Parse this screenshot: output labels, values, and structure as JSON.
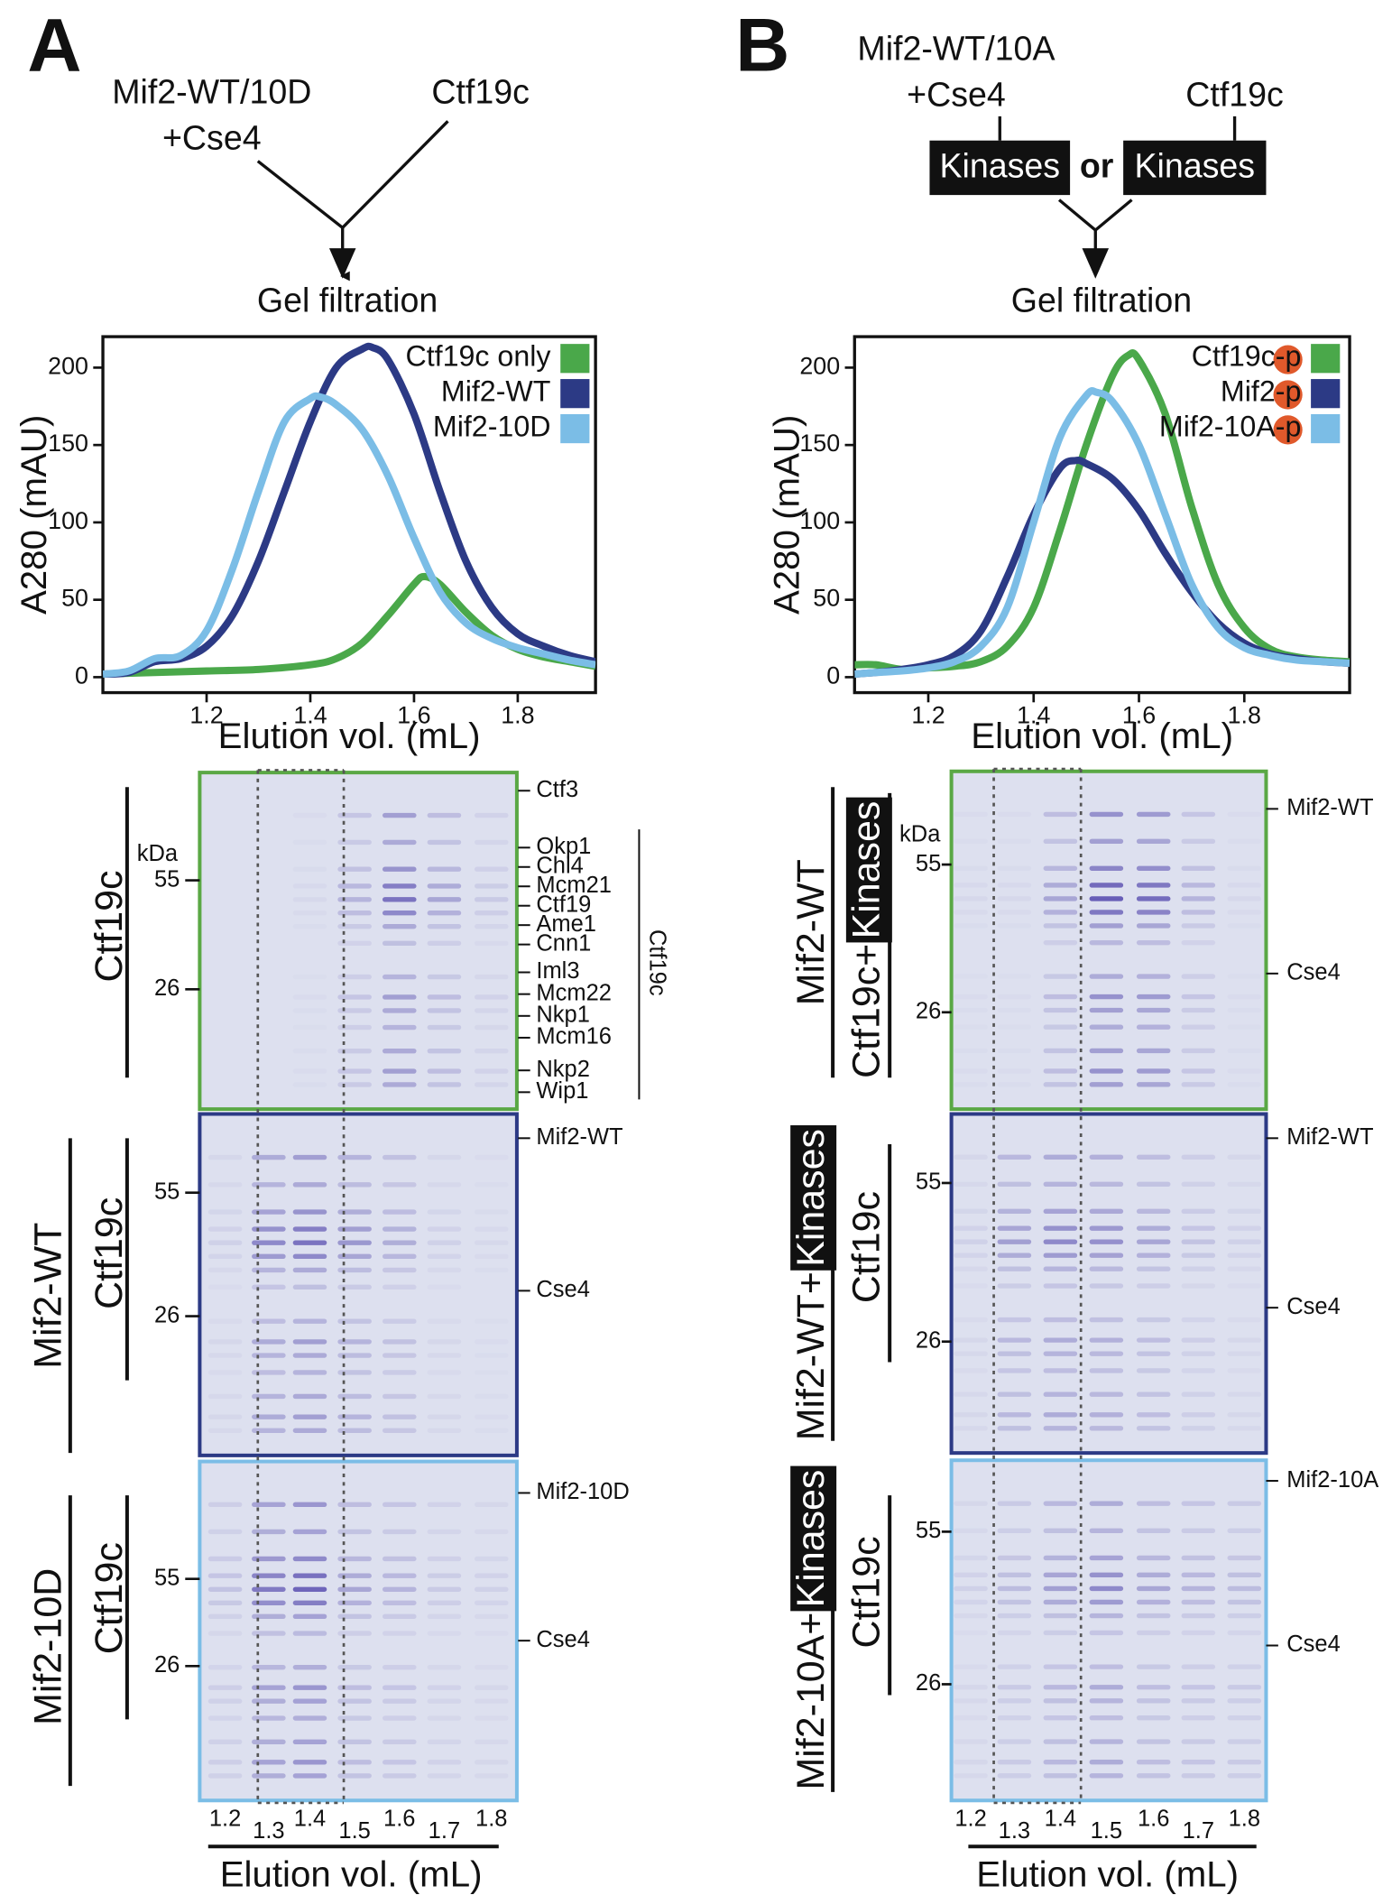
{
  "chart_data": [
    {
      "type": "line",
      "xlabel": "Elution vol. (mL)",
      "ylabel": "A280 (mAU)",
      "xlim": [
        1.0,
        1.95
      ],
      "ylim": [
        -10,
        220
      ],
      "xticks": [
        1.2,
        1.4,
        1.6,
        1.8
      ],
      "yticks": [
        0,
        50,
        100,
        150,
        200
      ],
      "legend": "upper right",
      "series": [
        {
          "name": "Ctf19c only",
          "color": "#4aa84a",
          "x": [
            1.0,
            1.1,
            1.2,
            1.3,
            1.4,
            1.45,
            1.5,
            1.55,
            1.6,
            1.62,
            1.65,
            1.7,
            1.75,
            1.8,
            1.85,
            1.9,
            1.95
          ],
          "values": [
            2,
            3,
            4,
            5,
            8,
            12,
            22,
            40,
            60,
            65,
            60,
            42,
            27,
            18,
            13,
            10,
            7
          ]
        },
        {
          "name": "Mif2-WT",
          "color": "#2c3a85",
          "x": [
            1.0,
            1.05,
            1.1,
            1.15,
            1.2,
            1.25,
            1.3,
            1.35,
            1.4,
            1.45,
            1.5,
            1.52,
            1.55,
            1.6,
            1.65,
            1.7,
            1.75,
            1.8,
            1.85,
            1.9,
            1.95
          ],
          "values": [
            2,
            3,
            10,
            12,
            20,
            40,
            75,
            120,
            165,
            200,
            212,
            213,
            205,
            170,
            120,
            75,
            45,
            28,
            20,
            14,
            10
          ]
        },
        {
          "name": "Mif2-10D",
          "color": "#7bbde6",
          "x": [
            1.0,
            1.05,
            1.1,
            1.15,
            1.2,
            1.25,
            1.3,
            1.35,
            1.4,
            1.42,
            1.45,
            1.5,
            1.55,
            1.6,
            1.65,
            1.7,
            1.75,
            1.8,
            1.85,
            1.9,
            1.95
          ],
          "values": [
            2,
            4,
            12,
            14,
            30,
            70,
            120,
            165,
            180,
            181,
            176,
            160,
            130,
            90,
            55,
            35,
            25,
            19,
            15,
            11,
            8
          ]
        }
      ]
    },
    {
      "type": "line",
      "xlabel": "Elution vol. (mL)",
      "ylabel": "A280 (mAU)",
      "xlim": [
        1.06,
        2.0
      ],
      "ylim": [
        -10,
        220
      ],
      "xticks": [
        1.2,
        1.4,
        1.6,
        1.8
      ],
      "yticks": [
        0,
        50,
        100,
        150,
        200
      ],
      "legend": "upper right",
      "series": [
        {
          "name": "Ctf19c-p",
          "color": "#4aa84a",
          "x": [
            1.06,
            1.1,
            1.15,
            1.2,
            1.25,
            1.3,
            1.35,
            1.4,
            1.45,
            1.5,
            1.55,
            1.58,
            1.6,
            1.65,
            1.7,
            1.75,
            1.8,
            1.85,
            1.9,
            1.95,
            2.0
          ],
          "values": [
            8,
            8,
            5,
            6,
            7,
            10,
            20,
            45,
            95,
            150,
            195,
            208,
            205,
            170,
            110,
            60,
            32,
            18,
            13,
            11,
            10
          ]
        },
        {
          "name": "Mif2-p",
          "color": "#2c3a85",
          "x": [
            1.06,
            1.1,
            1.15,
            1.2,
            1.25,
            1.3,
            1.35,
            1.4,
            1.45,
            1.48,
            1.5,
            1.55,
            1.6,
            1.65,
            1.7,
            1.75,
            1.8,
            1.85,
            1.9,
            1.95,
            2.0
          ],
          "values": [
            2,
            3,
            5,
            8,
            14,
            30,
            65,
            105,
            135,
            140,
            138,
            128,
            108,
            80,
            55,
            35,
            22,
            15,
            12,
            10,
            9
          ]
        },
        {
          "name": "Mif2-10A-p",
          "color": "#7bbde6",
          "x": [
            1.06,
            1.1,
            1.15,
            1.2,
            1.25,
            1.3,
            1.35,
            1.4,
            1.45,
            1.5,
            1.52,
            1.55,
            1.6,
            1.65,
            1.7,
            1.75,
            1.8,
            1.85,
            1.9,
            1.95,
            2.0
          ],
          "values": [
            2,
            3,
            4,
            6,
            10,
            20,
            45,
            100,
            155,
            182,
            184,
            178,
            150,
            105,
            60,
            32,
            19,
            14,
            11,
            10,
            9
          ]
        }
      ]
    }
  ],
  "figure": {
    "panels": [
      {
        "letter": "A",
        "inputs": [
          [
            "Mif2-WT/10D",
            "+Cse4"
          ],
          [
            "Ctf19c"
          ]
        ],
        "step": "Gel filtration",
        "kda": "kDa",
        "lanes": [
          1.2,
          1.3,
          1.4,
          1.5,
          1.6,
          1.7,
          1.8
        ],
        "lanes_label": "Elution vol. (mL)",
        "gels": [
          {
            "frame": "#5aa845",
            "sample": [
              {
                "text": "Ctf19c"
              }
            ],
            "markers": [
              55,
              26
            ],
            "proteins": [
              "Ctf3",
              "Okp1",
              "Chl4",
              "Mcm21",
              "Ctf19",
              "Ame1",
              "Cnn1",
              "Iml3",
              "Mcm22",
              "Nkp1",
              "Mcm16",
              "Nkp2",
              "Wip1"
            ],
            "bracket": "Ctf19c"
          },
          {
            "frame": "#2c3a85",
            "sample": [
              {
                "text": "Mif2-WT"
              },
              {
                "text": "Ctf19c"
              }
            ],
            "markers": [
              55,
              26
            ],
            "proteins": [
              "Mif2-WT",
              "Cse4"
            ]
          },
          {
            "frame": "#7bbde6",
            "sample": [
              {
                "text": "Mif2-10D"
              },
              {
                "text": "Ctf19c"
              }
            ],
            "markers": [
              55,
              26
            ],
            "proteins": [
              "Mif2-10D",
              "Cse4"
            ]
          }
        ]
      },
      {
        "letter": "B",
        "inputs": [
          [
            "Mif2-WT/10A",
            "+Cse4"
          ],
          [
            "Ctf19c"
          ]
        ],
        "treatment": [
          "Kinases",
          "or",
          "Kinases"
        ],
        "step": "Gel filtration",
        "kda": "kDa",
        "lanes": [
          1.2,
          1.3,
          1.4,
          1.5,
          1.6,
          1.7,
          1.8
        ],
        "lanes_label": "Elution vol. (mL)",
        "gels": [
          {
            "frame": "#5aa845",
            "sample": [
              {
                "text": "Mif2-WT"
              },
              {
                "text": "Ctf19c+",
                "boxed": "Kinases"
              }
            ],
            "markers": [
              55,
              26
            ],
            "proteins": [
              "Mif2-WT",
              "Cse4"
            ]
          },
          {
            "frame": "#2c3a85",
            "sample": [
              {
                "text": "Mif2-WT+",
                "boxed": "Kinases"
              },
              {
                "text": "Ctf19c"
              }
            ],
            "markers": [
              55,
              26
            ],
            "proteins": [
              "Mif2-WT",
              "Cse4"
            ]
          },
          {
            "frame": "#7bbde6",
            "sample": [
              {
                "text": "Mif2-10A+",
                "boxed": "Kinases"
              },
              {
                "text": "Ctf19c"
              }
            ],
            "markers": [
              55,
              26
            ],
            "proteins": [
              "Mif2-10A",
              "Cse4"
            ]
          }
        ]
      }
    ]
  }
}
